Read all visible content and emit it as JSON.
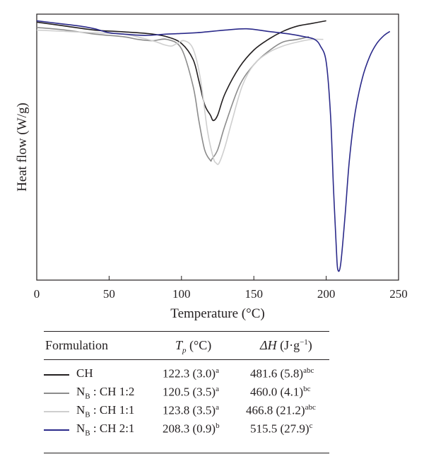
{
  "chart_data": {
    "type": "line",
    "xlabel": "Temperature (°C)",
    "ylabel": "Heat flow (W/g)",
    "xlim": [
      0,
      250
    ],
    "xticks": [
      0,
      50,
      100,
      150,
      200,
      250
    ],
    "ylim": [
      0,
      1
    ],
    "grid": false,
    "series": [
      {
        "name": "CH",
        "color": "#231f20",
        "points": [
          [
            0,
            0.97
          ],
          [
            20,
            0.955
          ],
          [
            40,
            0.94
          ],
          [
            55,
            0.935
          ],
          [
            70,
            0.93
          ],
          [
            80,
            0.925
          ],
          [
            90,
            0.915
          ],
          [
            100,
            0.89
          ],
          [
            108,
            0.83
          ],
          [
            112,
            0.75
          ],
          [
            116,
            0.66
          ],
          [
            120,
            0.62
          ],
          [
            122,
            0.6
          ],
          [
            125,
            0.62
          ],
          [
            130,
            0.7
          ],
          [
            140,
            0.8
          ],
          [
            150,
            0.865
          ],
          [
            160,
            0.905
          ],
          [
            170,
            0.935
          ],
          [
            180,
            0.955
          ],
          [
            190,
            0.965
          ],
          [
            200,
            0.975
          ]
        ]
      },
      {
        "name": "N_B : CH 1:2",
        "color": "#8c8c8c",
        "points": [
          [
            0,
            0.95
          ],
          [
            20,
            0.94
          ],
          [
            40,
            0.925
          ],
          [
            60,
            0.915
          ],
          [
            70,
            0.905
          ],
          [
            80,
            0.9
          ],
          [
            90,
            0.905
          ],
          [
            100,
            0.87
          ],
          [
            108,
            0.73
          ],
          [
            112,
            0.6
          ],
          [
            116,
            0.49
          ],
          [
            120,
            0.45
          ],
          [
            121,
            0.455
          ],
          [
            125,
            0.49
          ],
          [
            130,
            0.58
          ],
          [
            140,
            0.73
          ],
          [
            150,
            0.81
          ],
          [
            160,
            0.86
          ],
          [
            170,
            0.895
          ],
          [
            180,
            0.905
          ],
          [
            188,
            0.915
          ]
        ]
      },
      {
        "name": "N_B : CH 1:1",
        "color": "#cfcfcf",
        "points": [
          [
            0,
            0.94
          ],
          [
            20,
            0.935
          ],
          [
            40,
            0.93
          ],
          [
            60,
            0.925
          ],
          [
            80,
            0.9
          ],
          [
            88,
            0.885
          ],
          [
            93,
            0.88
          ],
          [
            97,
            0.89
          ],
          [
            102,
            0.9
          ],
          [
            108,
            0.87
          ],
          [
            113,
            0.76
          ],
          [
            118,
            0.56
          ],
          [
            122,
            0.46
          ],
          [
            124,
            0.44
          ],
          [
            126,
            0.44
          ],
          [
            130,
            0.5
          ],
          [
            135,
            0.6
          ],
          [
            142,
            0.73
          ],
          [
            150,
            0.81
          ],
          [
            160,
            0.855
          ],
          [
            170,
            0.88
          ],
          [
            180,
            0.895
          ],
          [
            190,
            0.905
          ],
          [
            198,
            0.905
          ]
        ]
      },
      {
        "name": "N_B : CH 2:1",
        "color": "#2b2a8a",
        "points": [
          [
            0,
            0.975
          ],
          [
            15,
            0.965
          ],
          [
            30,
            0.955
          ],
          [
            40,
            0.945
          ],
          [
            50,
            0.93
          ],
          [
            60,
            0.925
          ],
          [
            75,
            0.92
          ],
          [
            90,
            0.925
          ],
          [
            110,
            0.93
          ],
          [
            130,
            0.94
          ],
          [
            145,
            0.945
          ],
          [
            160,
            0.935
          ],
          [
            175,
            0.925
          ],
          [
            185,
            0.915
          ],
          [
            192,
            0.905
          ],
          [
            196,
            0.88
          ],
          [
            200,
            0.82
          ],
          [
            203,
            0.62
          ],
          [
            205,
            0.35
          ],
          [
            207,
            0.12
          ],
          [
            208,
            0.04
          ],
          [
            210,
            0.06
          ],
          [
            213,
            0.24
          ],
          [
            216,
            0.45
          ],
          [
            220,
            0.63
          ],
          [
            225,
            0.76
          ],
          [
            230,
            0.84
          ],
          [
            235,
            0.89
          ],
          [
            240,
            0.92
          ],
          [
            244,
            0.935
          ]
        ]
      }
    ]
  },
  "table": {
    "headers": {
      "formulation": "Formulation",
      "tp_main": "T",
      "tp_sub": "p",
      "tp_unit": " (°C)",
      "dh_main": "ΔH",
      "dh_unit": " (J·g",
      "dh_exp": "−1",
      "dh_close": ")"
    },
    "rows": [
      {
        "base": "CH",
        "base_sub": "",
        "rest": "",
        "color": "#231f20",
        "tp": "122.3 (3.0)",
        "tp_sup": "a",
        "dh": "481.6 (5.8)",
        "dh_sup": "abc"
      },
      {
        "base": "N",
        "base_sub": "B",
        "rest": " : CH 1:2",
        "color": "#8c8c8c",
        "tp": "120.5 (3.5)",
        "tp_sup": "a",
        "dh": "460.0 (4.1)",
        "dh_sup": "bc"
      },
      {
        "base": "N",
        "base_sub": "B",
        "rest": " : CH 1:1",
        "color": "#cfcfcf",
        "tp": "123.8 (3.5)",
        "tp_sup": "a",
        "dh": "466.8 (21.2)",
        "dh_sup": "abc"
      },
      {
        "base": "N",
        "base_sub": "B",
        "rest": " : CH 2:1",
        "color": "#2b2a8a",
        "tp": "208.3 (0.9)",
        "tp_sup": "b",
        "dh": "515.5 (27.9)",
        "dh_sup": "c"
      }
    ]
  }
}
